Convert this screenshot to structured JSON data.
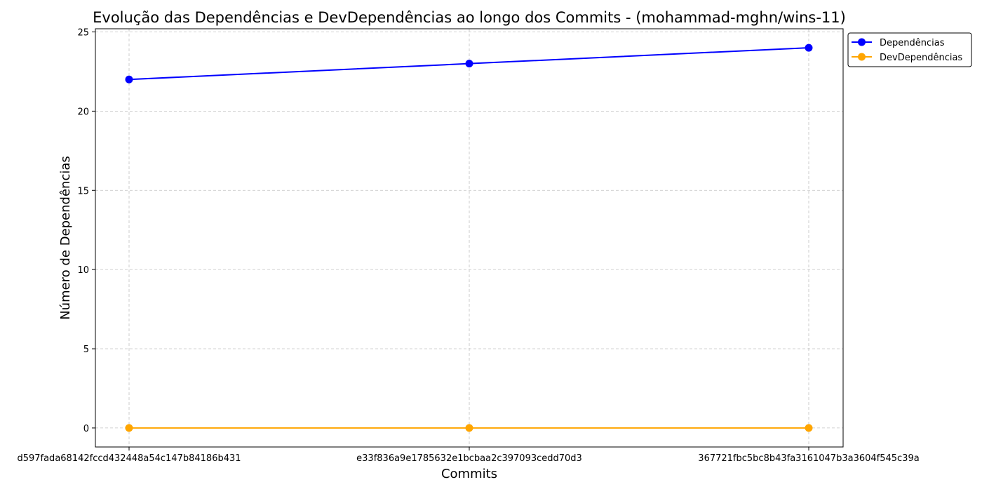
{
  "chart_data": {
    "type": "line",
    "title": "Evolução das Dependências e DevDependências ao longo dos Commits - (mohammad-mghn/wins-11)",
    "xlabel": "Commits",
    "ylabel": "Número de Dependências",
    "categories": [
      "d597fada68142fccd432448a54c147b84186b431",
      "e33f836a9e1785632e1bcbaa2c397093cedd70d3",
      "367721fbc5bc8b43fa3161047b3a3604f545c39a"
    ],
    "series": [
      {
        "name": "Dependências",
        "values": [
          22,
          23,
          24
        ],
        "color": "#0000ff",
        "marker": "circle"
      },
      {
        "name": "DevDependências",
        "values": [
          0,
          0,
          0
        ],
        "color": "#ffa500",
        "marker": "circle"
      }
    ],
    "ylim": [
      -1.2,
      25.2
    ],
    "yticks": [
      0,
      5,
      10,
      15,
      20,
      25
    ],
    "grid": true,
    "grid_style": "dashed",
    "legend_position": "outside-top-right"
  }
}
